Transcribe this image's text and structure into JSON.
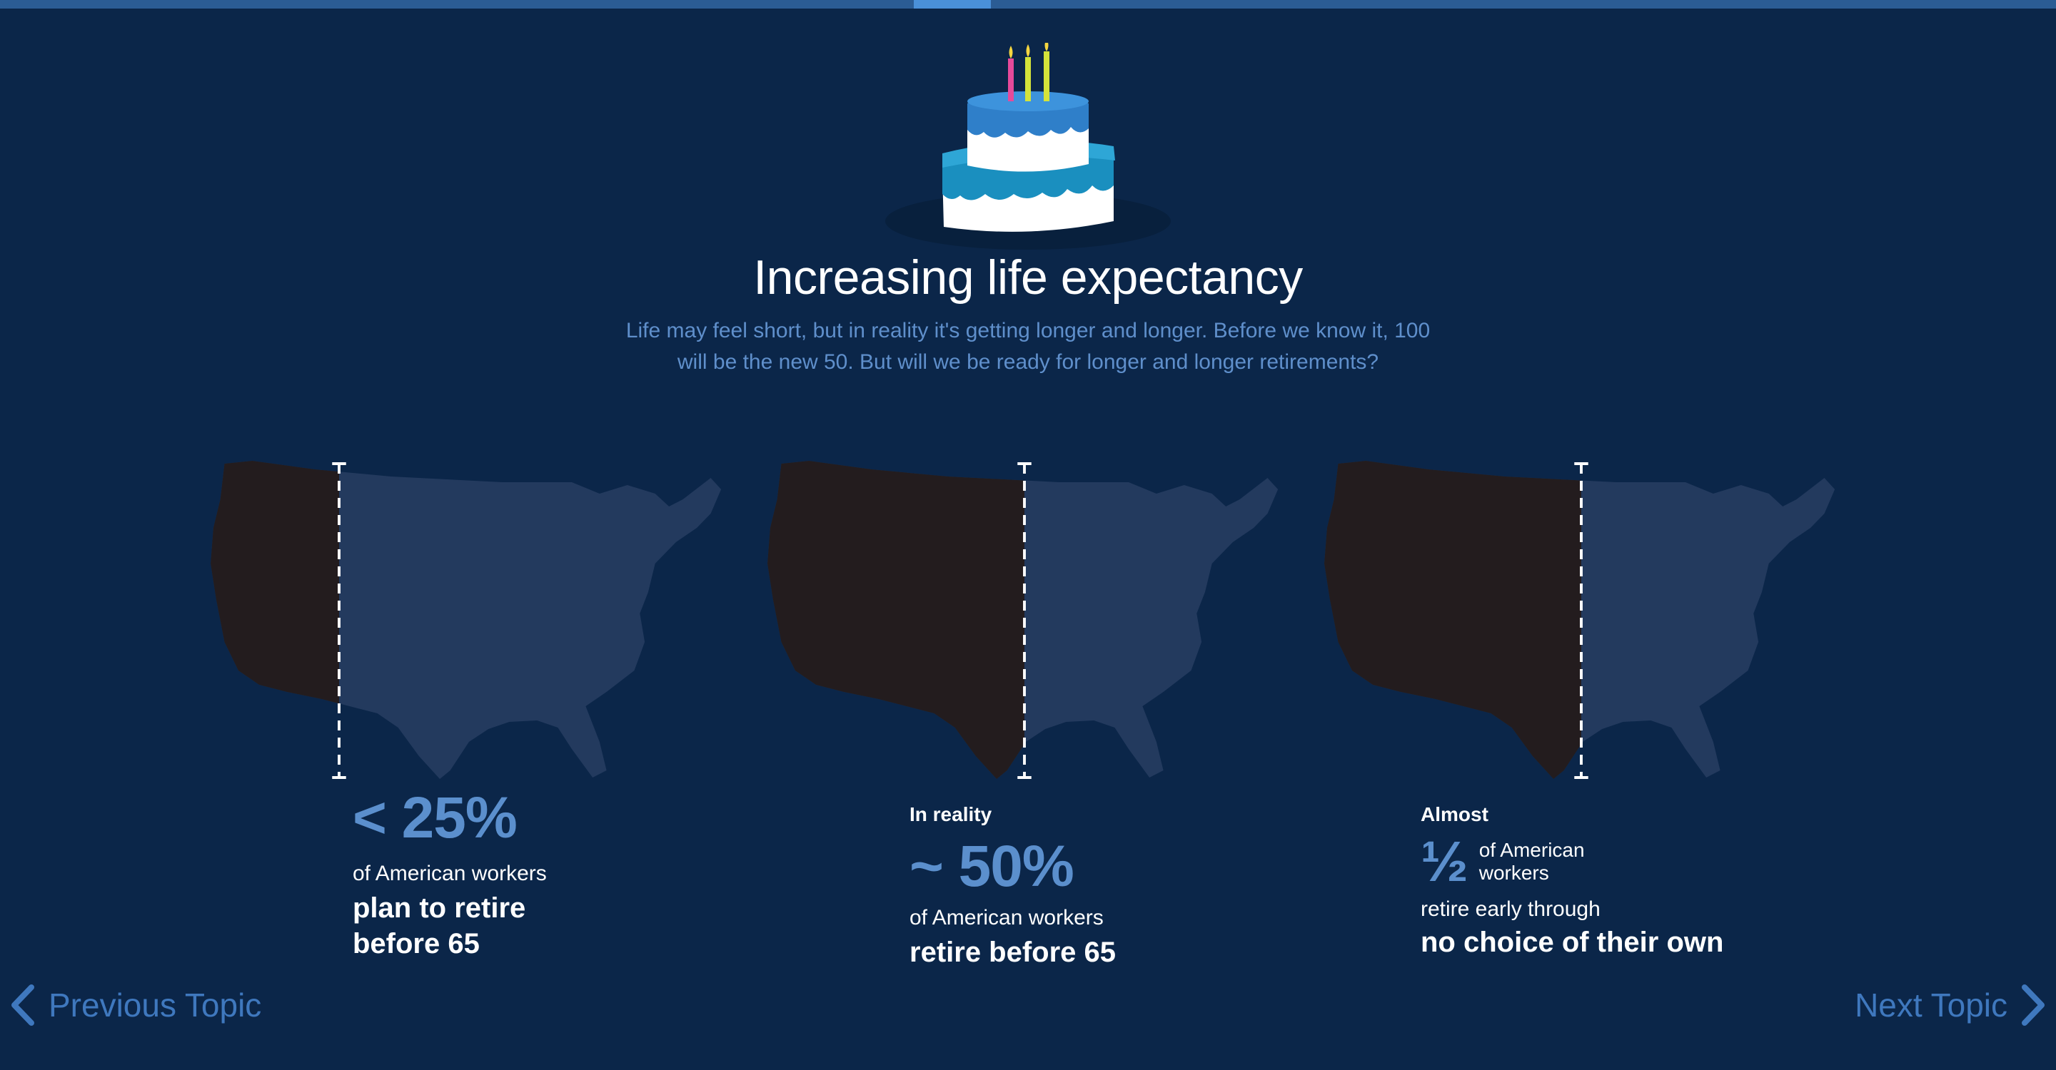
{
  "topic": {
    "title": "Increasing life expectancy",
    "subtitle": "Life may feel short, but in reality it's getting longer and longer. Before we know it, 100 will be the new 50. But will we be ready for longer and longer retirements?"
  },
  "stats": [
    {
      "pre_label": "",
      "value": "< 25%",
      "small": "of American workers",
      "bold_line1": "plan to retire",
      "bold_line2": "before 65",
      "map_fill_fraction": 0.25
    },
    {
      "pre_label": "In reality",
      "value": "~ 50%",
      "small": "of American workers",
      "bold_line1": "retire before 65",
      "map_fill_fraction": 0.5
    },
    {
      "pre_label": "Almost",
      "value": "½",
      "half_text": "of American workers",
      "small": "retire early through",
      "bold_line1": "no choice of their own",
      "map_fill_fraction": 0.5
    }
  ],
  "nav": {
    "previous": "Previous Topic",
    "next": "Next Topic"
  },
  "colors": {
    "background": "#0b2649",
    "accent": "#5b8fcd",
    "map_base": "#233a5e",
    "map_fill": "#231c1e"
  }
}
